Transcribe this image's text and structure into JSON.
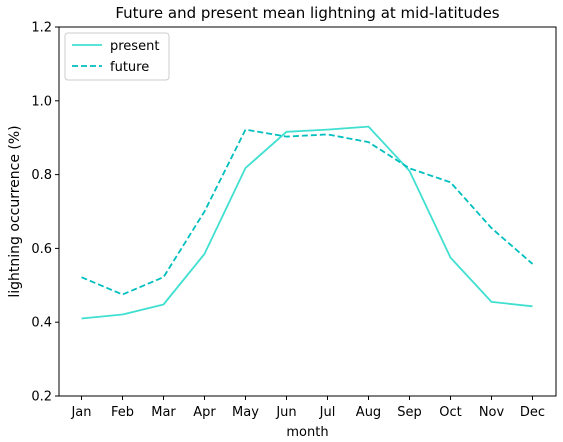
{
  "chart_data": {
    "type": "line",
    "title": "Future and present mean lightning at mid-latitudes",
    "xlabel": "month",
    "ylabel": "lightning occurrence (%)",
    "categories": [
      "Jan",
      "Feb",
      "Mar",
      "Apr",
      "May",
      "Jun",
      "Jul",
      "Aug",
      "Sep",
      "Oct",
      "Nov",
      "Dec"
    ],
    "ylim": [
      0.2,
      1.2
    ],
    "yticks": [
      "0.2",
      "0.4",
      "0.6",
      "0.8",
      "1.0",
      "1.2"
    ],
    "grid": false,
    "legend_position": "top-left",
    "series": [
      {
        "name": "present",
        "color": "#40e0d0",
        "linestyle": "solid",
        "values": [
          0.41,
          0.421,
          0.448,
          0.585,
          0.818,
          0.916,
          0.922,
          0.93,
          0.81,
          0.575,
          0.455,
          0.443
        ]
      },
      {
        "name": "future",
        "color": "#00bfbf",
        "linestyle": "dashed",
        "values": [
          0.522,
          0.475,
          0.522,
          0.7,
          0.922,
          0.903,
          0.909,
          0.888,
          0.817,
          0.779,
          0.655,
          0.558
        ]
      }
    ]
  }
}
